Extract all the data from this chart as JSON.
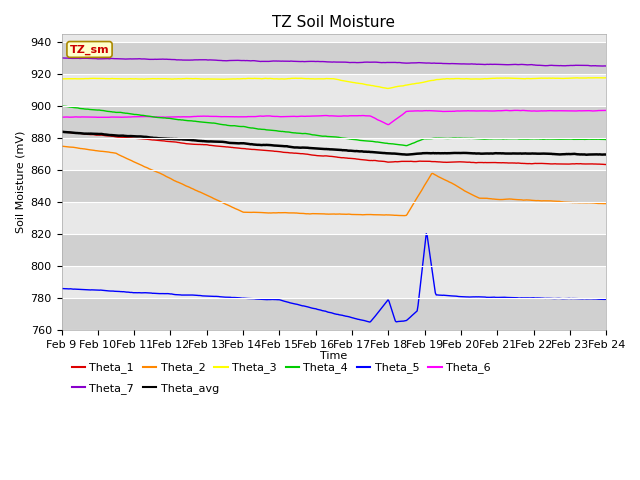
{
  "title": "TZ Soil Moisture",
  "ylabel": "Soil Moisture (mV)",
  "xlabel": "Time",
  "label_box": "TZ_sm",
  "ylim": [
    760,
    945
  ],
  "yticks": [
    760,
    780,
    800,
    820,
    840,
    860,
    880,
    900,
    920,
    940
  ],
  "date_labels": [
    "Feb 9",
    "Feb 10",
    "Feb 11",
    "Feb 12",
    "Feb 13",
    "Feb 14",
    "Feb 15",
    "Feb 16",
    "Feb 17",
    "Feb 18",
    "Feb 19",
    "Feb 20",
    "Feb 21",
    "Feb 22",
    "Feb 23",
    "Feb 24"
  ],
  "n_points": 600,
  "series": {
    "Theta_1": {
      "color": "#dd0000"
    },
    "Theta_2": {
      "color": "#ff8800"
    },
    "Theta_3": {
      "color": "#ffff00"
    },
    "Theta_4": {
      "color": "#00cc00"
    },
    "Theta_5": {
      "color": "#0000ff"
    },
    "Theta_6": {
      "color": "#ff00ff"
    },
    "Theta_7": {
      "color": "#8800cc"
    },
    "Theta_avg": {
      "color": "#000000"
    }
  },
  "bg_color": "#ffffff",
  "plot_bg_color": "#e8e8e8",
  "alt_band_color": "#d0d0d0",
  "title_fontsize": 11,
  "tick_fontsize": 8,
  "legend_fontsize": 8,
  "linewidth": 1.0,
  "avg_linewidth": 1.8
}
